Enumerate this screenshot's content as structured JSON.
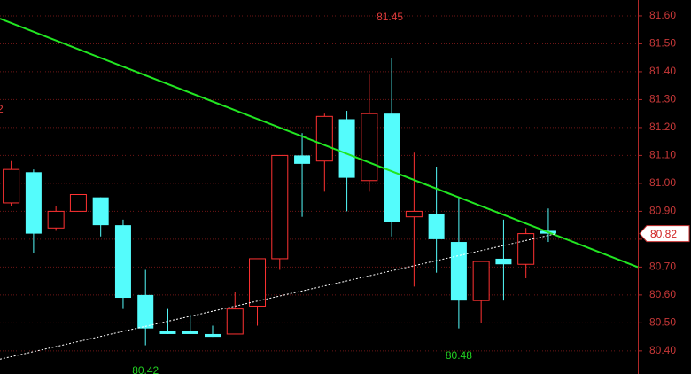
{
  "chart_data": {
    "type": "candlestick",
    "open": [
      80.93,
      81.04,
      80.84,
      80.9,
      80.95,
      80.85,
      80.6,
      80.47,
      80.47,
      80.46,
      80.46,
      80.56,
      80.73,
      81.1,
      81.08,
      81.23,
      81.01,
      81.25,
      80.88,
      80.89,
      80.79,
      80.58,
      80.73,
      80.71,
      80.83
    ],
    "high": [
      81.08,
      81.05,
      80.92,
      80.96,
      80.95,
      80.87,
      80.69,
      80.55,
      80.53,
      80.49,
      80.61,
      80.73,
      81.1,
      81.18,
      81.25,
      81.26,
      81.39,
      81.45,
      81.11,
      81.06,
      80.95,
      80.72,
      80.87,
      80.84,
      80.91
    ],
    "low": [
      80.92,
      80.75,
      80.83,
      80.9,
      80.81,
      80.55,
      80.42,
      80.46,
      80.46,
      80.45,
      80.46,
      80.49,
      80.69,
      80.88,
      80.97,
      80.9,
      80.97,
      80.81,
      80.63,
      80.68,
      80.48,
      80.5,
      80.58,
      80.66,
      80.79
    ],
    "close": [
      81.05,
      80.82,
      80.9,
      80.96,
      80.85,
      80.59,
      80.48,
      80.46,
      80.46,
      80.45,
      80.55,
      80.73,
      81.1,
      81.07,
      81.24,
      81.02,
      81.25,
      80.86,
      80.9,
      80.8,
      80.58,
      80.72,
      80.71,
      80.82,
      80.82
    ],
    "up_color": "#ff3232",
    "down_color": "#54fcfc",
    "xlim": [
      -0.5,
      28
    ],
    "ylim": [
      80.317,
      81.657
    ],
    "yticks": [
      {
        "value": 81.6,
        "label": "81.60"
      },
      {
        "value": 81.5,
        "label": "81.50"
      },
      {
        "value": 81.4,
        "label": "81.40"
      },
      {
        "value": 81.3,
        "label": "81.30"
      },
      {
        "value": 81.2,
        "label": "81.20"
      },
      {
        "value": 81.1,
        "label": "81.10"
      },
      {
        "value": 81.0,
        "label": "81.00"
      },
      {
        "value": 80.9,
        "label": "80.90"
      },
      {
        "value": 80.8,
        "label": "80.80"
      },
      {
        "value": 80.7,
        "label": "80.70"
      },
      {
        "value": 80.6,
        "label": "80.60"
      },
      {
        "value": 80.5,
        "label": "80.50"
      },
      {
        "value": 80.4,
        "label": "80.40"
      }
    ],
    "grid": true,
    "trendlines": [
      {
        "color": "#22e622",
        "x": [
          -0.5,
          28
        ],
        "values": [
          81.59,
          80.7
        ]
      },
      {
        "color": "#ffffff",
        "x": [
          -0.5,
          24.36
        ],
        "values": [
          80.37,
          80.82
        ]
      }
    ],
    "annotations": [
      {
        "text": "81.45",
        "color": "#e03c3c"
      },
      {
        "text": "80.42",
        "color": "#22d022"
      },
      {
        "text": "80.48",
        "color": "#22d022"
      },
      {
        "text": "2",
        "color": "#e03c3c"
      }
    ],
    "last_price": 80.82
  }
}
